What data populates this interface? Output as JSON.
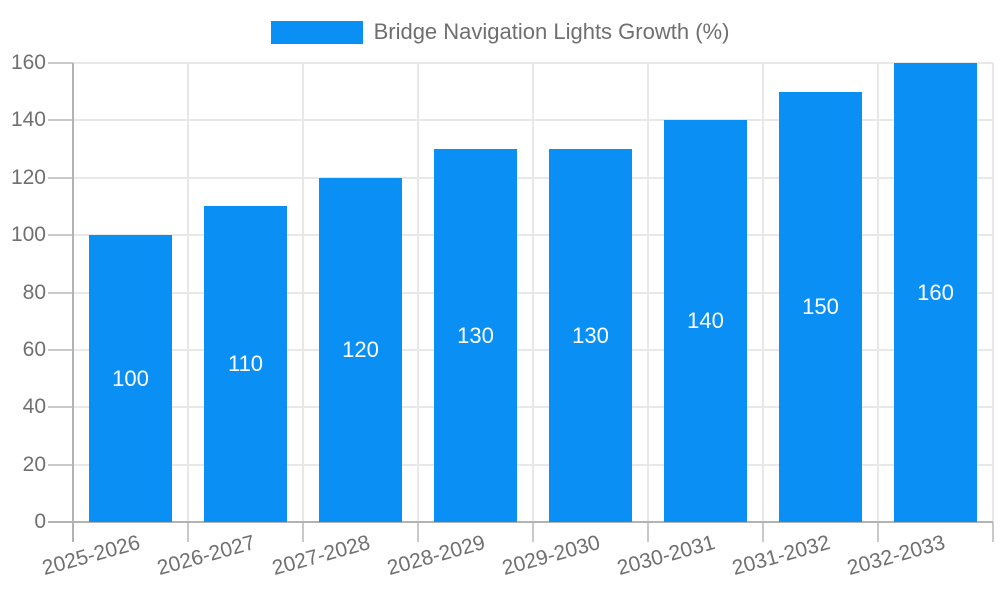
{
  "legend": {
    "label": "Bridge Navigation Lights Growth (%)"
  },
  "chart_data": {
    "type": "bar",
    "title": "Bridge Navigation Lights Growth (%)",
    "series_name": "Bridge Navigation Lights Growth (%)",
    "categories": [
      "2025-2026",
      "2026-2027",
      "2027-2028",
      "2028-2029",
      "2029-2030",
      "2030-2031",
      "2031-2032",
      "2032-2033"
    ],
    "values": [
      100,
      110,
      120,
      130,
      130,
      140,
      150,
      160
    ],
    "bar_labels": [
      "100",
      "110",
      "120",
      "130",
      "130",
      "140",
      "150",
      "160"
    ],
    "xlabel": "",
    "ylabel": "",
    "ylim": [
      0,
      160
    ],
    "yticks": [
      0,
      20,
      40,
      60,
      80,
      100,
      120,
      140,
      160
    ],
    "grid": true,
    "legend_position": "top-center",
    "colors": {
      "bar": "#0a90f4",
      "bar_label_text": "#ffffff",
      "gridline": "#e8e8e8",
      "tick": "#c9c9c9",
      "axis": "#b3b3b3",
      "axis_text": "#707070",
      "legend_text": "#6f6f6f"
    }
  }
}
